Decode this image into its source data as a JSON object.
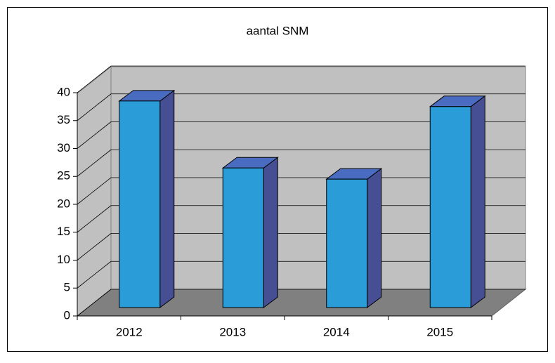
{
  "chart_data": {
    "type": "bar3d",
    "title": "aantal SNM",
    "categories": [
      "2012",
      "2013",
      "2014",
      "2015"
    ],
    "values": [
      37,
      25,
      23,
      36
    ],
    "color": "#2a9cd8",
    "side_color": "#464f94",
    "ylim": [
      0,
      40
    ],
    "yticks": [
      0,
      5,
      10,
      15,
      20,
      25,
      30,
      35,
      40
    ],
    "grid": true
  }
}
